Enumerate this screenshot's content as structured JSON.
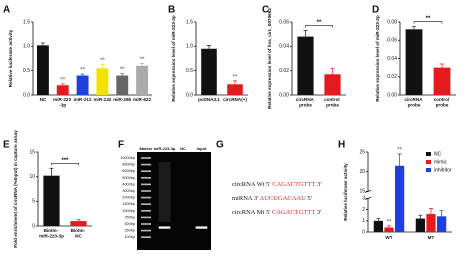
{
  "chart_data": [
    {
      "type": "bar",
      "label": "A",
      "ylabel": "Relative luciferase activity",
      "categories": [
        "NC",
        "miR-223 -3p",
        "miR-212",
        "miR-132",
        "miR-29b",
        "miR-622"
      ],
      "values": [
        1.02,
        0.2,
        0.4,
        0.55,
        0.4,
        0.6
      ],
      "errors": [
        0.05,
        0.03,
        0.03,
        0.08,
        0.04,
        0.05
      ],
      "colors": [
        "#111111",
        "#e41a1c",
        "#1f3fe0",
        "#f2e200",
        "#666666",
        "#aaaaaa"
      ],
      "stars": [
        null,
        "**",
        "**",
        "**",
        "**",
        "**"
      ],
      "ylim": [
        0,
        1.5
      ],
      "yticks": [
        {
          "value": 0,
          "label": "0.0"
        },
        {
          "value": 0.5,
          "label": "0.5"
        },
        {
          "value": 1,
          "label": "1.0"
        },
        {
          "value": 1.5,
          "label": "1.5"
        }
      ]
    },
    {
      "type": "bar",
      "label": "B",
      "ylabel": "Relative expression level of miR-223-3p",
      "categories": [
        "pcDNA3.1",
        "circRNA(+)"
      ],
      "values": [
        0.95,
        0.22
      ],
      "errors": [
        0.07,
        0.07
      ],
      "colors": [
        "#111111",
        "#e41a1c"
      ],
      "stars": [
        null,
        "**"
      ],
      "ylim": [
        0,
        1.5
      ],
      "yticks": [
        {
          "value": 0,
          "label": "0.0"
        },
        {
          "value": 0.5,
          "label": "0.5"
        },
        {
          "value": 1,
          "label": "1.0"
        },
        {
          "value": 1.5,
          "label": "1.5"
        }
      ]
    },
    {
      "type": "bar",
      "label": "C",
      "ylabel": "Relative expression level of hsa_circ_0079663",
      "categories": [
        "circRNA probe",
        "control probe"
      ],
      "values": [
        0.048,
        0.017
      ],
      "errors": [
        0.005,
        0.005
      ],
      "colors": [
        "#111111",
        "#e41a1c"
      ],
      "bracket": "**",
      "ylim": [
        0,
        0.06
      ],
      "yticks": [
        {
          "value": 0,
          "label": "0.00"
        },
        {
          "value": 0.02,
          "label": "0.02"
        },
        {
          "value": 0.04,
          "label": "0.04"
        },
        {
          "value": 0.06,
          "label": "0.06"
        }
      ]
    },
    {
      "type": "bar",
      "label": "D",
      "ylabel": "Relative expression level of miR-223-3p",
      "categories": [
        "circRNA probe",
        "control probe"
      ],
      "values": [
        0.072,
        0.03
      ],
      "errors": [
        0.003,
        0.004
      ],
      "colors": [
        "#111111",
        "#e41a1c"
      ],
      "bracket": "**",
      "ylim": [
        0,
        0.08
      ],
      "yticks": [
        {
          "value": 0,
          "label": "0.00"
        },
        {
          "value": 0.02,
          "label": "0.02"
        },
        {
          "value": 0.04,
          "label": "0.04"
        },
        {
          "value": 0.06,
          "label": "0.06"
        },
        {
          "value": 0.08,
          "label": "0.08"
        }
      ]
    },
    {
      "type": "bar",
      "label": "E",
      "ylabel": "Fold enrichment of circRNA (%Input) in capture assay",
      "categories": [
        "Biotin- miR-223-3p",
        "Biotin- NC"
      ],
      "values": [
        10.2,
        1.0
      ],
      "errors": [
        1.5,
        0.3
      ],
      "colors": [
        "#111111",
        "#e41a1c"
      ],
      "bracket": "***",
      "ylim": [
        0,
        15
      ],
      "yticks": [
        0,
        5,
        10,
        15
      ]
    },
    {
      "type": "grouped-bar",
      "label": "H",
      "ylabel": "Relative luciferase activity",
      "categories": [
        "WT",
        "MT"
      ],
      "series": [
        {
          "name": "NC",
          "color": "#111111",
          "values": [
            1.0,
            1.2
          ],
          "errors": [
            0.2,
            0.3
          ]
        },
        {
          "name": "mimic",
          "color": "#e41a1c",
          "values": [
            0.4,
            1.6
          ],
          "errors": [
            0.15,
            0.5
          ],
          "stars": [
            "**",
            null
          ]
        },
        {
          "name": "inhibitor",
          "color": "#1f3fe0",
          "values": [
            21.5,
            1.4
          ],
          "errors": [
            3.0,
            0.5
          ],
          "stars": [
            "**",
            null
          ]
        }
      ],
      "ylim": [
        0,
        25
      ],
      "ybreak": [
        3,
        15
      ],
      "yticks": [
        0,
        1,
        2,
        3,
        15,
        20,
        25
      ],
      "legend": "top-right"
    }
  ],
  "gel": {
    "label": "F",
    "lanes": [
      "Marker",
      "miR-223-3p",
      "NC",
      "Input"
    ],
    "ladder": [
      "10000bp",
      "8000bp",
      "6000bp",
      "5000bp",
      "4000bp",
      "3000bp",
      "2000bp",
      "1500bp",
      "1000bp",
      "750bp",
      "500bp",
      "250bp",
      "100bp"
    ]
  },
  "sequences": {
    "label": "G",
    "lines": [
      {
        "prefix": "circRNA Wt 5' ",
        "seq": "CAGACTGTTT",
        "suffix": " 3'"
      },
      {
        "prefix": "miRNA 3' ",
        "seq": "AUCUGACAAU",
        "suffix": " 5'"
      },
      {
        "prefix": "circRNA Mt 5' ",
        "seq": "CAGACTGTTT",
        "suffix": " 3'"
      }
    ]
  }
}
